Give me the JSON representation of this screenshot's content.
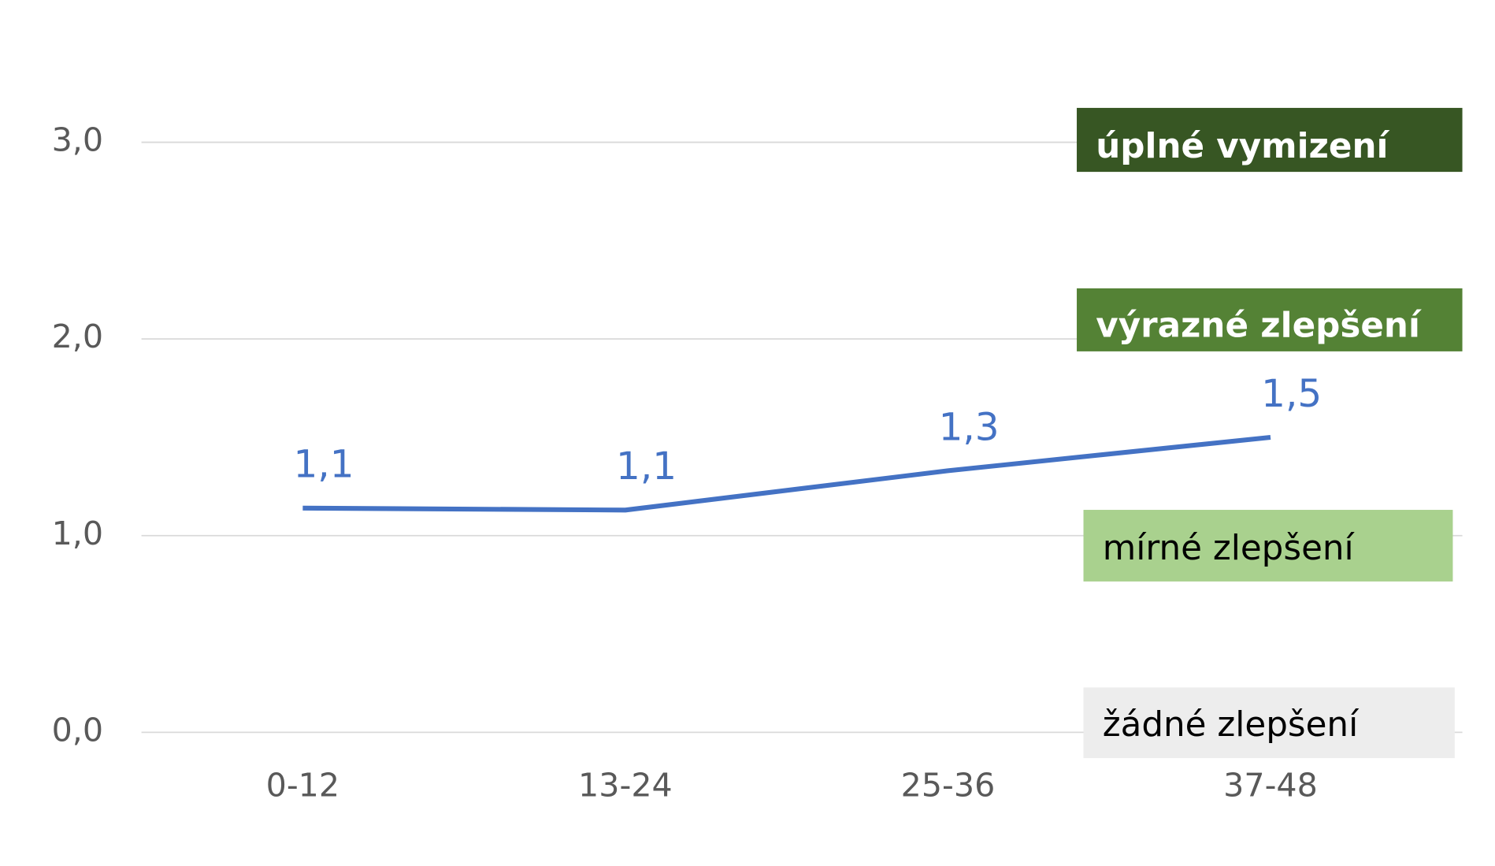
{
  "chart_data": {
    "type": "line",
    "categories": [
      "0-12",
      "13-24",
      "25-36",
      "37-48"
    ],
    "series": [
      {
        "color": "#4472c4",
        "values": [
          1.14,
          1.13,
          1.33,
          1.5
        ],
        "value_labels": [
          "1,1",
          "1,1",
          "1,3",
          "1,5"
        ]
      }
    ],
    "ylim": [
      0,
      3
    ],
    "yticks": [
      {
        "value": 0,
        "label": "0,0"
      },
      {
        "value": 1,
        "label": "1,0"
      },
      {
        "value": 2,
        "label": "2,0"
      },
      {
        "value": 3,
        "label": "3,0"
      }
    ],
    "grid": true,
    "annotations": [
      {
        "text": "úplné vymizení",
        "color": "#375623"
      },
      {
        "text": "výrazné zlepšení",
        "color": "#548235"
      },
      {
        "text": "mírné zlepšení",
        "color": "#a9d18e"
      },
      {
        "text": "žádné zlepšení",
        "color": "#ededed"
      }
    ]
  }
}
